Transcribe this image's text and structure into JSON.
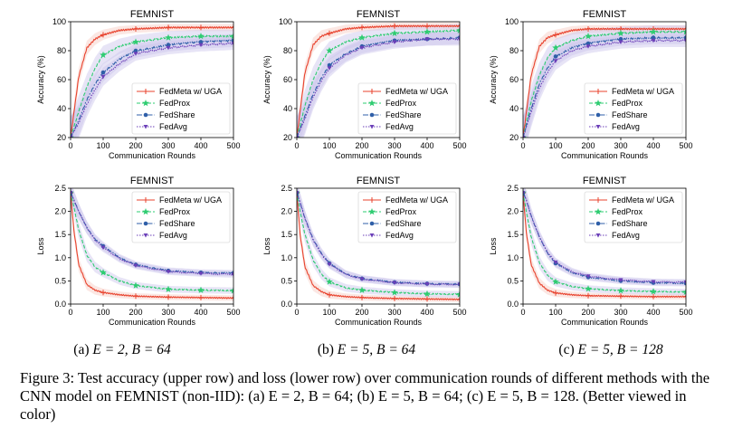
{
  "colors": {
    "fedmeta": "#e8432e",
    "fedprox": "#2ecc71",
    "fedshare": "#2f5fa8",
    "fedavg": "#6b3fb8",
    "band_fedmeta": "#f7c9c2",
    "band_others": "#c9c4ec"
  },
  "legend_labels": [
    "FedMeta w/ UGA",
    "FedProx",
    "FedShare",
    "FedAvg"
  ],
  "chart_data": [
    {
      "type": "line",
      "panel": "accuracy-a",
      "title": "FEMNIST",
      "xlabel": "Communication Rounds",
      "ylabel": "Accuracy (%)",
      "xlim": [
        0,
        500
      ],
      "ylim": [
        20,
        100
      ],
      "xticks": [
        0,
        100,
        200,
        300,
        400,
        500
      ],
      "yticks": [
        20,
        40,
        60,
        80,
        100
      ],
      "legend": "lower-right",
      "x": [
        0,
        25,
        50,
        75,
        100,
        150,
        200,
        300,
        400,
        500
      ],
      "series": [
        {
          "name": "FedMeta w/ UGA",
          "values": [
            20,
            62,
            82,
            88,
            91,
            94,
            95,
            96,
            96,
            96
          ]
        },
        {
          "name": "FedProx",
          "values": [
            20,
            38,
            55,
            68,
            77,
            83,
            86,
            89,
            90,
            90
          ]
        },
        {
          "name": "FedShare",
          "values": [
            20,
            32,
            46,
            57,
            65,
            74,
            80,
            84,
            86,
            87
          ]
        },
        {
          "name": "FedAvg",
          "values": [
            20,
            30,
            43,
            53,
            62,
            71,
            78,
            82,
            84,
            85
          ]
        }
      ]
    },
    {
      "type": "line",
      "panel": "accuracy-b",
      "title": "FEMNIST",
      "xlabel": "Communication Rounds",
      "ylabel": "Accuracy (%)",
      "xlim": [
        0,
        500
      ],
      "ylim": [
        20,
        100
      ],
      "xticks": [
        0,
        100,
        200,
        300,
        400,
        500
      ],
      "yticks": [
        20,
        40,
        60,
        80,
        100
      ],
      "legend": "lower-right",
      "x": [
        0,
        25,
        50,
        75,
        100,
        150,
        200,
        300,
        400,
        500
      ],
      "series": [
        {
          "name": "FedMeta w/ UGA",
          "values": [
            20,
            65,
            84,
            90,
            92,
            95,
            96,
            97,
            97,
            97
          ]
        },
        {
          "name": "FedProx",
          "values": [
            20,
            42,
            60,
            72,
            80,
            86,
            89,
            92,
            93,
            94
          ]
        },
        {
          "name": "FedShare",
          "values": [
            20,
            35,
            50,
            61,
            70,
            78,
            83,
            87,
            88,
            89
          ]
        },
        {
          "name": "FedAvg",
          "values": [
            20,
            33,
            48,
            59,
            68,
            77,
            82,
            86,
            88,
            88
          ]
        }
      ]
    },
    {
      "type": "line",
      "panel": "accuracy-c",
      "title": "FEMNIST",
      "xlabel": "Communication Rounds",
      "ylabel": "Accuracy (%)",
      "xlim": [
        0,
        500
      ],
      "ylim": [
        20,
        100
      ],
      "xticks": [
        0,
        100,
        200,
        300,
        400,
        500
      ],
      "yticks": [
        20,
        40,
        60,
        80,
        100
      ],
      "legend": "lower-right",
      "x": [
        0,
        25,
        50,
        75,
        100,
        150,
        200,
        300,
        400,
        500
      ],
      "series": [
        {
          "name": "FedMeta w/ UGA",
          "values": [
            20,
            63,
            83,
            89,
            91,
            94,
            95,
            95,
            95,
            95
          ]
        },
        {
          "name": "FedProx",
          "values": [
            20,
            45,
            63,
            75,
            82,
            87,
            90,
            92,
            93,
            93
          ]
        },
        {
          "name": "FedShare",
          "values": [
            20,
            40,
            57,
            68,
            76,
            82,
            85,
            88,
            89,
            89
          ]
        },
        {
          "name": "FedAvg",
          "values": [
            20,
            38,
            54,
            65,
            73,
            80,
            83,
            86,
            87,
            87
          ]
        }
      ]
    },
    {
      "type": "line",
      "panel": "loss-a",
      "title": "FEMNIST",
      "xlabel": "Communication Rounds",
      "ylabel": "Loss",
      "xlim": [
        0,
        500
      ],
      "ylim": [
        0,
        2.5
      ],
      "xticks": [
        0,
        100,
        200,
        300,
        400,
        500
      ],
      "yticks": [
        0.0,
        0.5,
        1.0,
        1.5,
        2.0,
        2.5
      ],
      "legend": "upper-right",
      "x": [
        0,
        10,
        25,
        50,
        75,
        100,
        150,
        200,
        300,
        400,
        500
      ],
      "series": [
        {
          "name": "FedMeta w/ UGA",
          "values": [
            2.4,
            1.6,
            0.85,
            0.42,
            0.3,
            0.25,
            0.2,
            0.17,
            0.15,
            0.14,
            0.13
          ]
        },
        {
          "name": "FedProx",
          "values": [
            2.4,
            2.1,
            1.6,
            1.05,
            0.8,
            0.68,
            0.5,
            0.4,
            0.32,
            0.3,
            0.29
          ]
        },
        {
          "name": "FedShare",
          "values": [
            2.4,
            2.25,
            2.0,
            1.65,
            1.4,
            1.25,
            1.0,
            0.85,
            0.72,
            0.68,
            0.67
          ]
        },
        {
          "name": "FedAvg",
          "values": [
            2.4,
            2.25,
            2.0,
            1.65,
            1.38,
            1.22,
            0.98,
            0.83,
            0.7,
            0.66,
            0.64
          ]
        }
      ]
    },
    {
      "type": "line",
      "panel": "loss-b",
      "title": "FEMNIST",
      "xlabel": "Communication Rounds",
      "ylabel": "Loss",
      "xlim": [
        0,
        500
      ],
      "ylim": [
        0,
        2.5
      ],
      "xticks": [
        0,
        100,
        200,
        300,
        400,
        500
      ],
      "yticks": [
        0.0,
        0.5,
        1.0,
        1.5,
        2.0,
        2.5
      ],
      "legend": "upper-right",
      "x": [
        0,
        10,
        25,
        50,
        75,
        100,
        150,
        200,
        300,
        400,
        500
      ],
      "series": [
        {
          "name": "FedMeta w/ UGA",
          "values": [
            2.4,
            1.5,
            0.8,
            0.4,
            0.27,
            0.2,
            0.16,
            0.14,
            0.12,
            0.11,
            0.1
          ]
        },
        {
          "name": "FedProx",
          "values": [
            2.4,
            2.0,
            1.5,
            0.95,
            0.65,
            0.48,
            0.35,
            0.3,
            0.25,
            0.22,
            0.21
          ]
        },
        {
          "name": "FedShare",
          "values": [
            2.4,
            2.2,
            1.85,
            1.4,
            1.1,
            0.88,
            0.65,
            0.55,
            0.47,
            0.44,
            0.43
          ]
        },
        {
          "name": "FedAvg",
          "values": [
            2.4,
            2.2,
            1.85,
            1.38,
            1.08,
            0.86,
            0.64,
            0.54,
            0.46,
            0.43,
            0.42
          ]
        }
      ]
    },
    {
      "type": "line",
      "panel": "loss-c",
      "title": "FEMNIST",
      "xlabel": "Communication Rounds",
      "ylabel": "Loss",
      "xlim": [
        0,
        500
      ],
      "ylim": [
        0,
        2.5
      ],
      "xticks": [
        0,
        100,
        200,
        300,
        400,
        500
      ],
      "yticks": [
        0.0,
        0.5,
        1.0,
        1.5,
        2.0,
        2.5
      ],
      "legend": "upper-right",
      "x": [
        0,
        10,
        25,
        50,
        75,
        100,
        150,
        200,
        300,
        400,
        500
      ],
      "series": [
        {
          "name": "FedMeta w/ UGA",
          "values": [
            2.4,
            1.55,
            0.85,
            0.45,
            0.3,
            0.24,
            0.2,
            0.18,
            0.17,
            0.16,
            0.16
          ]
        },
        {
          "name": "FedProx",
          "values": [
            2.4,
            2.0,
            1.45,
            0.9,
            0.62,
            0.48,
            0.38,
            0.33,
            0.29,
            0.27,
            0.26
          ]
        },
        {
          "name": "FedShare",
          "values": [
            2.4,
            2.25,
            1.9,
            1.45,
            1.1,
            0.88,
            0.68,
            0.58,
            0.5,
            0.46,
            0.45
          ]
        },
        {
          "name": "FedAvg",
          "values": [
            2.4,
            2.25,
            1.9,
            1.45,
            1.12,
            0.9,
            0.7,
            0.6,
            0.52,
            0.48,
            0.47
          ]
        }
      ]
    }
  ],
  "subcaptions": [
    {
      "label": "(a)",
      "math": "E = 2, B = 64"
    },
    {
      "label": "(b)",
      "math": "E = 5, B = 64"
    },
    {
      "label": "(c)",
      "math": "E = 5, B = 128"
    }
  ],
  "caption": "Figure 3: Test accuracy (upper row) and loss (lower row) over communication rounds of different methods with the CNN model on FEMNIST (non-IID): (a) E = 2, B = 64; (b) E = 5, B = 64; (c) E = 5, B = 128. (Better viewed in color)"
}
